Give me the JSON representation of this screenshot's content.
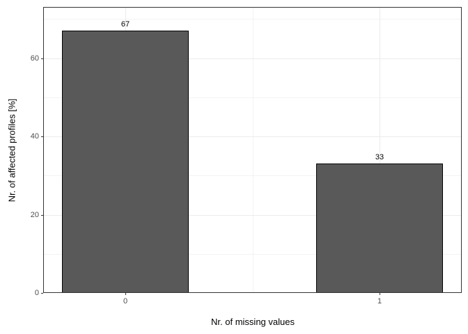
{
  "chart_data": {
    "type": "bar",
    "title": "",
    "xlabel": "Nr. of missing values",
    "ylabel": "Nr. of affected profiles [%]",
    "categories": [
      "0",
      "1"
    ],
    "x_positions": [
      0,
      1
    ],
    "values": [
      67,
      33
    ],
    "bar_value_labels": [
      "67",
      "33"
    ],
    "bar_width_units": 0.5,
    "xlim": [
      -0.325,
      1.325
    ],
    "ylim": [
      0,
      73.1
    ],
    "y_major_ticks": [
      0,
      20,
      40,
      60
    ],
    "y_major_tick_labels": [
      "0",
      "20",
      "40",
      "60"
    ],
    "y_minor_ticks": [
      10,
      30,
      50,
      70
    ],
    "x_minor_positions": [
      0.5
    ],
    "grid": true,
    "legend_position": "none"
  },
  "style": {
    "background": "#ffffff",
    "panel_background": "#ffffff",
    "panel_border_color": "#333333",
    "bar_fill": "#595959",
    "bar_border": "#000000",
    "grid_major_color": "#ebebeb",
    "grid_minor_color": "#f3f3f3",
    "tick_mark_color": "#333333",
    "tick_label_color": "#4d4d4d",
    "axis_title_color": "#000000",
    "value_label_color": "#000000"
  }
}
